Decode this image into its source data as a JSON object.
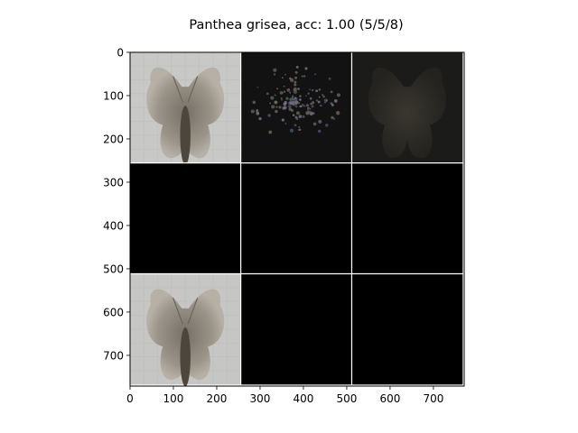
{
  "chart_data": {
    "type": "image-grid",
    "title": "Panthea grisea, acc: 1.00 (5/5/8)",
    "x_ticks": [
      "0",
      "100",
      "200",
      "300",
      "400",
      "500",
      "600",
      "700"
    ],
    "y_ticks": [
      "0",
      "100",
      "200",
      "300",
      "400",
      "500",
      "600",
      "700"
    ],
    "x_tick_values": [
      0,
      100,
      200,
      300,
      400,
      500,
      600,
      700
    ],
    "y_tick_values": [
      0,
      100,
      200,
      300,
      400,
      500,
      600,
      700
    ],
    "xlim": [
      0,
      771
    ],
    "ylim": [
      771,
      0
    ],
    "grid_rows": 3,
    "grid_cols": 3,
    "tile_size": 256,
    "tiles": [
      {
        "row": 0,
        "col": 0,
        "content": "moth-photo",
        "background": "#c8c8c6"
      },
      {
        "row": 0,
        "col": 1,
        "content": "dark-speckled-saliency",
        "background": "#121213"
      },
      {
        "row": 0,
        "col": 2,
        "content": "dark-moth-silhouette",
        "background": "#1b1b1a"
      },
      {
        "row": 1,
        "col": 0,
        "content": "black",
        "background": "#000000"
      },
      {
        "row": 1,
        "col": 1,
        "content": "black",
        "background": "#000000"
      },
      {
        "row": 1,
        "col": 2,
        "content": "black",
        "background": "#000000"
      },
      {
        "row": 2,
        "col": 0,
        "content": "moth-photo",
        "background": "#c6c6c4"
      },
      {
        "row": 2,
        "col": 1,
        "content": "black",
        "background": "#000000"
      },
      {
        "row": 2,
        "col": 2,
        "content": "black",
        "background": "#000000"
      }
    ]
  }
}
